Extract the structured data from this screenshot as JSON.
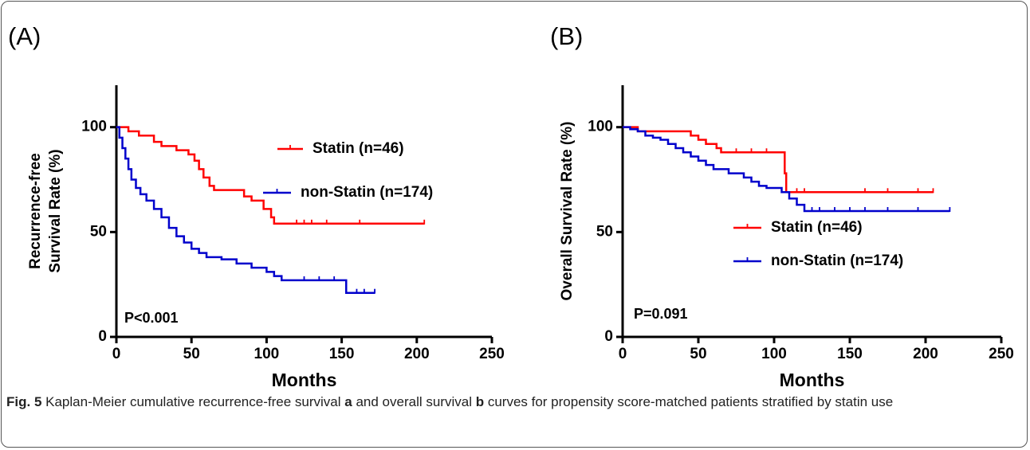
{
  "caption": [
    {
      "text": "Fig. 5",
      "bold": true
    },
    {
      "text": "Kaplan-Meier cumulative recurrence-free survival",
      "bold": false
    },
    {
      "text": "a",
      "bold": true
    },
    {
      "text": "and overall survival",
      "bold": false
    },
    {
      "text": "b",
      "bold": true
    },
    {
      "text": "curves for propensity score-matched patients stratified by statin use",
      "bold": false
    }
  ],
  "chart_data": [
    {
      "type": "step",
      "panel_label": "(A)",
      "x_label": "Months",
      "y_label": [
        "Recurrence-free",
        "Survival Rate (%)"
      ],
      "annotation": "P<0.001",
      "xlim": [
        0,
        250
      ],
      "xticks": [
        0,
        50,
        100,
        150,
        200,
        250
      ],
      "ylim": [
        0,
        120
      ],
      "yticks": [
        0,
        50,
        100
      ],
      "series": [
        {
          "name": "Statin (n=46)",
          "color": "#ff0000",
          "x": [
            0,
            8,
            15,
            25,
            30,
            40,
            48,
            52,
            55,
            58,
            62,
            65,
            85,
            90,
            98,
            103,
            105,
            205
          ],
          "values": [
            100,
            98,
            96,
            93,
            91,
            89,
            87,
            84,
            80,
            76,
            72,
            70,
            67,
            65,
            61,
            57,
            54,
            54
          ],
          "censored": [
            120,
            125,
            130,
            140,
            162,
            205
          ]
        },
        {
          "name": "non-Statin (n=174)",
          "color": "#0000cc",
          "x": [
            0,
            2,
            4,
            6,
            8,
            10,
            13,
            16,
            20,
            25,
            30,
            35,
            40,
            45,
            50,
            55,
            60,
            70,
            80,
            90,
            100,
            105,
            110,
            153,
            172
          ],
          "values": [
            100,
            95,
            90,
            85,
            80,
            75,
            71,
            68,
            65,
            61,
            57,
            52,
            48,
            45,
            42,
            40,
            38,
            37,
            35,
            33,
            31,
            29,
            27,
            21,
            21
          ],
          "censored": [
            125,
            135,
            145,
            160,
            165,
            172
          ]
        }
      ]
    },
    {
      "type": "step",
      "panel_label": "(B)",
      "x_label": "Months",
      "y_label": [
        "Overall Survival Rate (%)"
      ],
      "annotation": "P=0.091",
      "xlim": [
        0,
        250
      ],
      "xticks": [
        0,
        50,
        100,
        150,
        200,
        250
      ],
      "ylim": [
        0,
        120
      ],
      "yticks": [
        0,
        50,
        100
      ],
      "series": [
        {
          "name": "Statin (n=46)",
          "color": "#ff0000",
          "x": [
            0,
            10,
            45,
            50,
            55,
            62,
            65,
            107,
            108,
            205
          ],
          "values": [
            100,
            98,
            96,
            94,
            92,
            90,
            88,
            78,
            69,
            69
          ],
          "censored": [
            75,
            85,
            95,
            115,
            120,
            160,
            175,
            195,
            205
          ]
        },
        {
          "name": "non-Statin (n=174)",
          "color": "#0000cc",
          "x": [
            0,
            5,
            10,
            15,
            20,
            25,
            30,
            35,
            40,
            45,
            50,
            55,
            60,
            70,
            80,
            85,
            90,
            95,
            105,
            110,
            115,
            120,
            216
          ],
          "values": [
            100,
            99,
            98,
            96,
            95,
            94,
            92,
            90,
            88,
            86,
            84,
            82,
            80,
            78,
            76,
            74,
            72,
            71,
            69,
            66,
            63,
            60,
            60
          ],
          "censored": [
            125,
            130,
            140,
            150,
            160,
            175,
            195,
            216
          ]
        }
      ]
    }
  ]
}
